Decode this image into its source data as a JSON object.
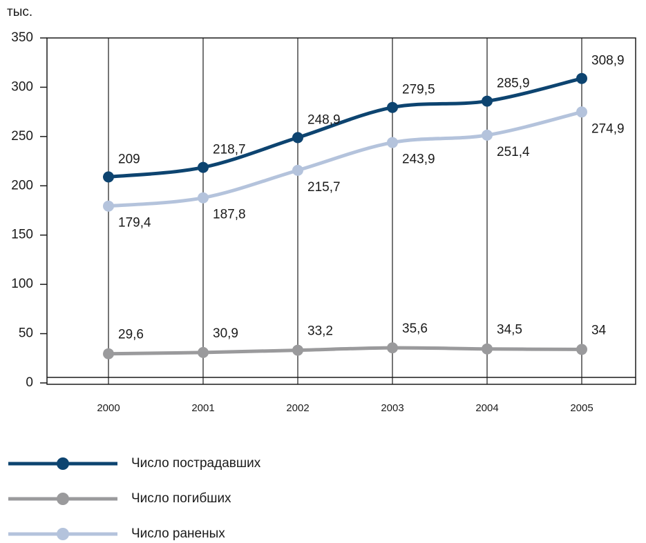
{
  "chart_data": {
    "type": "line",
    "ylabel": "тыс.",
    "categories": [
      "2000",
      "2001",
      "2002",
      "2003",
      "2004",
      "2005"
    ],
    "series": [
      {
        "name": "Число пострадавших",
        "color": "#0d4470",
        "values": [
          209,
          218.7,
          248.9,
          279.5,
          285.9,
          308.9
        ],
        "value_labels": [
          "209",
          "218,7",
          "248,9",
          "279,5",
          "285,9",
          "308,9"
        ]
      },
      {
        "name": "Число погибших",
        "color": "#9a9a9c",
        "values": [
          29.6,
          30.9,
          33.2,
          35.6,
          34.5,
          34
        ],
        "value_labels": [
          "29,6",
          "30,9",
          "33,2",
          "35,6",
          "34,5",
          "34"
        ]
      },
      {
        "name": "Число раненых",
        "color": "#b4c3dc",
        "values": [
          179.4,
          187.8,
          215.7,
          243.9,
          251.4,
          274.9
        ],
        "value_labels": [
          "179,4",
          "187,8",
          "215,7",
          "243,9",
          "251,4",
          "274,9"
        ]
      }
    ],
    "ylim": [
      0,
      350
    ],
    "yticks": [
      0,
      50,
      100,
      150,
      200,
      250,
      300,
      350
    ],
    "grid": true
  }
}
